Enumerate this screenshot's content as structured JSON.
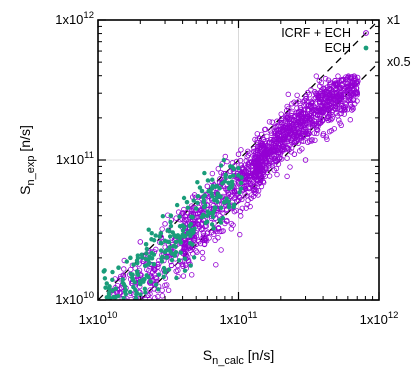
{
  "chart_data": {
    "type": "scatter",
    "x_scale": "log",
    "y_scale": "log",
    "xlim": [
      10000000000.0,
      1000000000000.0
    ],
    "ylim": [
      10000000000.0,
      1000000000000.0
    ],
    "x_ticks": [
      10000000000.0,
      100000000000.0,
      1000000000000.0
    ],
    "y_ticks": [
      10000000000.0,
      100000000000.0,
      1000000000000.0
    ],
    "x_tick_labels": [
      "1x10¹⁰",
      "1x10¹¹",
      "1x10¹²"
    ],
    "y_tick_labels": [
      "1x10¹⁰",
      "1x10¹¹",
      "1x10¹²"
    ],
    "xlabel": {
      "main": "S",
      "sub": "n_calc",
      "unit": " [n/s]"
    },
    "ylabel": {
      "main": "S",
      "sub": "n_exp",
      "unit": " [n/s]"
    },
    "grid": "minor lines at 1x10¹¹",
    "legend_placement": "top-right",
    "reference_lines": [
      {
        "label": "x1",
        "factor": 1,
        "style": "dashed"
      },
      {
        "label": "x0.5",
        "factor": 0.5,
        "style": "dashed"
      }
    ],
    "series": [
      {
        "name": "ICRF + ECH",
        "marker": "open-circle",
        "color": "#9400d3",
        "approx_count": 3000,
        "distribution": "dense band along x1 line, x from about 1.3x10¹⁰ to 7x10¹¹, y from about 1x10¹⁰ to 3.5x10¹¹",
        "points": [
          [
            13000000000.0,
            11000000000.0
          ],
          [
            15000000000.0,
            13000000000.0
          ],
          [
            18000000000.0,
            11000000000.0
          ],
          [
            20000000000.0,
            15000000000.0
          ],
          [
            25000000000.0,
            12000000000.0
          ],
          [
            22000000000.0,
            18000000000.0
          ],
          [
            30000000000.0,
            16000000000.0
          ],
          [
            35000000000.0,
            22000000000.0
          ],
          [
            40000000000.0,
            18000000000.0
          ],
          [
            45000000000.0,
            30000000000.0
          ],
          [
            50000000000.0,
            25000000000.0
          ],
          [
            55000000000.0,
            40000000000.0
          ],
          [
            60000000000.0,
            30000000000.0
          ],
          [
            70000000000.0,
            45000000000.0
          ],
          [
            80000000000.0,
            50000000000.0
          ],
          [
            90000000000.0,
            60000000000.0
          ],
          [
            100000000000.0,
            70000000000.0
          ],
          [
            120000000000.0,
            80000000000.0
          ],
          [
            140000000000.0,
            100000000000.0
          ],
          [
            160000000000.0,
            110000000000.0
          ],
          [
            180000000000.0,
            130000000000.0
          ],
          [
            200000000000.0,
            140000000000.0
          ],
          [
            230000000000.0,
            160000000000.0
          ],
          [
            260000000000.0,
            180000000000.0
          ],
          [
            300000000000.0,
            200000000000.0
          ],
          [
            350000000000.0,
            230000000000.0
          ],
          [
            400000000000.0,
            260000000000.0
          ],
          [
            450000000000.0,
            280000000000.0
          ],
          [
            500000000000.0,
            300000000000.0
          ],
          [
            600000000000.0,
            320000000000.0
          ],
          [
            650000000000.0,
            340000000000.0
          ],
          [
            700000000000.0,
            300000000000.0
          ],
          [
            300000000000.0,
            100000000000.0
          ],
          [
            400000000000.0,
            150000000000.0
          ],
          [
            250000000000.0,
            110000000000.0
          ],
          [
            150000000000.0,
            140000000000.0
          ],
          [
            100000000000.0,
            110000000000.0
          ],
          [
            60000000000.0,
            65000000000.0
          ],
          [
            30000000000.0,
            35000000000.0
          ],
          [
            20000000000.0,
            26000000000.0
          ]
        ]
      },
      {
        "name": "ECH",
        "marker": "filled-circle",
        "color": "#1a9d7a",
        "approx_count": 300,
        "distribution": "x from about 1.1x10¹⁰ to 1.1x10¹¹, y from about 1x10¹⁰ to 8x10¹⁰",
        "points": [
          [
            11000000000.0,
            16000000000.0
          ],
          [
            13000000000.0,
            10500000000.0
          ],
          [
            15000000000.0,
            14000000000.0
          ],
          [
            17000000000.0,
            20000000000.0
          ],
          [
            20000000000.0,
            13000000000.0
          ],
          [
            22000000000.0,
            25000000000.0
          ],
          [
            25000000000.0,
            18000000000.0
          ],
          [
            28000000000.0,
            30000000000.0
          ],
          [
            30000000000.0,
            22000000000.0
          ],
          [
            33000000000.0,
            40000000000.0
          ],
          [
            36000000000.0,
            26000000000.0
          ],
          [
            40000000000.0,
            34000000000.0
          ],
          [
            43000000000.0,
            50000000000.0
          ],
          [
            47000000000.0,
            30000000000.0
          ],
          [
            50000000000.0,
            45000000000.0
          ],
          [
            55000000000.0,
            60000000000.0
          ],
          [
            60000000000.0,
            40000000000.0
          ],
          [
            65000000000.0,
            55000000000.0
          ],
          [
            70000000000.0,
            65000000000.0
          ],
          [
            80000000000.0,
            50000000000.0
          ],
          [
            90000000000.0,
            70000000000.0
          ],
          [
            105000000000.0,
            75000000000.0
          ],
          [
            12000000000.0,
            12000000000.0
          ],
          [
            14000000000.0,
            17000000000.0
          ],
          [
            19000000000.0,
            16000000000.0
          ]
        ]
      }
    ]
  }
}
